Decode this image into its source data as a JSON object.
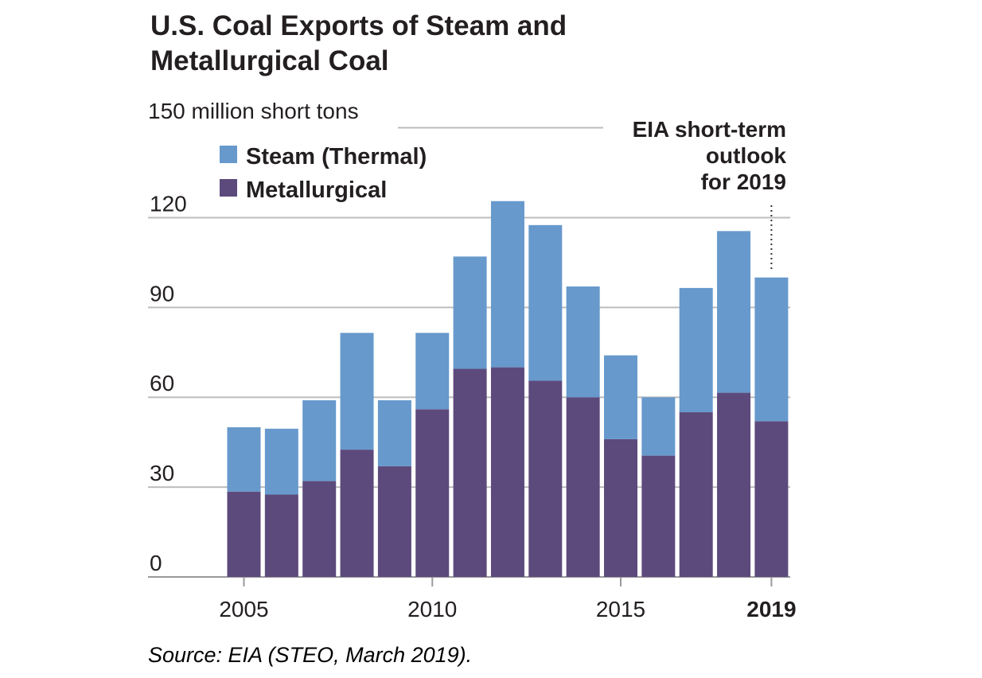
{
  "chart_data": {
    "type": "bar",
    "stacked": true,
    "title": [
      "U.S. Coal Exports of Steam and",
      "Metallurgical Coal"
    ],
    "ylabel": "150 million short tons",
    "ylim": [
      0,
      150
    ],
    "yticks": [
      0,
      30,
      60,
      90,
      120
    ],
    "categories": [
      "2005",
      "2006",
      "2007",
      "2008",
      "2009",
      "2010",
      "2011",
      "2012",
      "2013",
      "2014",
      "2015",
      "2016",
      "2017",
      "2018",
      "2019"
    ],
    "xtick_labels": [
      {
        "label": "2005",
        "index": 0,
        "bold": false
      },
      {
        "label": "2010",
        "index": 5,
        "bold": false
      },
      {
        "label": "2015",
        "index": 10,
        "bold": false
      },
      {
        "label": "2019",
        "index": 14,
        "bold": true
      }
    ],
    "series": [
      {
        "name": "Metallurgical",
        "color": "#5d4a7c",
        "values": [
          28.5,
          27.5,
          32,
          42.5,
          37,
          56,
          69.5,
          70,
          65.5,
          60,
          46,
          40.5,
          55,
          61.5,
          52
        ]
      },
      {
        "name": "Steam (Thermal)",
        "color": "#6799cc",
        "values": [
          21.5,
          22,
          27,
          39,
          22,
          25.5,
          37.5,
          55.5,
          52,
          37,
          28,
          19.5,
          41.5,
          54,
          48
        ]
      }
    ],
    "legend": {
      "position": "top-left",
      "order": [
        "Steam (Thermal)",
        "Metallurgical"
      ]
    },
    "annotation": {
      "lines": [
        "EIA short-term",
        "outlook",
        "for 2019"
      ],
      "target": "2019"
    },
    "grid": true
  },
  "source": "Source: EIA (STEO, March 2019)."
}
